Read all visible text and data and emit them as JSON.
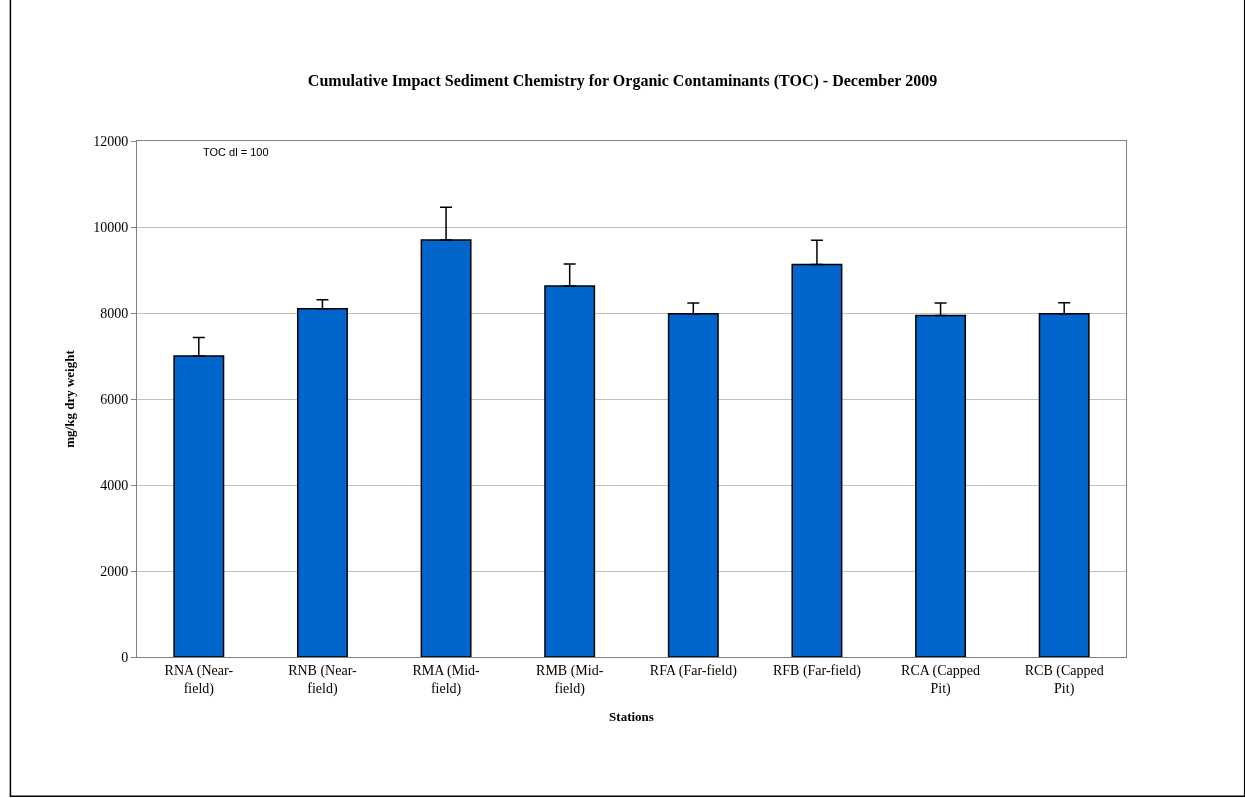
{
  "chart_data": {
    "type": "bar",
    "title": "Cumulative Impact Sediment Chemistry for Organic Contaminants (TOC) - December 2009",
    "xlabel": "Stations",
    "ylabel": "mg/kg dry weight",
    "categories": [
      "RNA (Near-\nfield)",
      "RNB (Near-\nfield)",
      "RMA (Mid-\nfield)",
      "RMB (Mid-\nfield)",
      "RFA (Far-field)",
      "RFB (Far-field)",
      "RCA (Capped\nPit)",
      "RCB (Capped\nPit)"
    ],
    "values": [
      7000,
      8100,
      9700,
      8630,
      7980,
      9130,
      7940,
      7980
    ],
    "errors": [
      [
        7000,
        7430
      ],
      [
        8100,
        8310
      ],
      [
        9700,
        10460
      ],
      [
        8630,
        9140
      ],
      [
        7980,
        8230
      ],
      [
        9130,
        9690
      ],
      [
        7940,
        8230
      ],
      [
        7980,
        8240
      ]
    ],
    "color": "#0066cc",
    "ylim": [
      0,
      12000
    ],
    "yticks": [
      0,
      2000,
      4000,
      6000,
      8000,
      10000,
      12000
    ],
    "grid": "y",
    "annotations": [
      "TOC dl = 100"
    ]
  }
}
